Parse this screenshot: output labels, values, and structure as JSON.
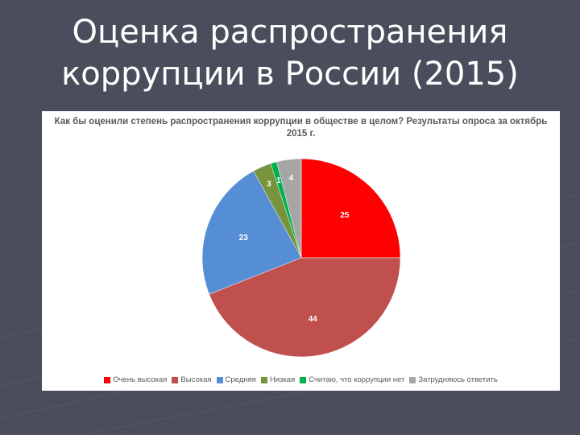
{
  "slide": {
    "title_line1": "Оценка распространения",
    "title_line2": "коррупции в России (2015)"
  },
  "chart_data": {
    "type": "pie",
    "title": "Как бы оценили степень распространения коррупции в обществе в целом? Результаты опроса за октябрь 2015 г.",
    "categories": [
      "Очень высокая",
      "Высокая",
      "Средняя",
      "Низкая",
      "Считаю, что коррупции нет",
      "Затрудняюсь ответить"
    ],
    "values": [
      25,
      44,
      23,
      3,
      1,
      4
    ],
    "colors": [
      "#ff0000",
      "#c0504d",
      "#558ed5",
      "#77933c",
      "#00b050",
      "#a6a6a6"
    ],
    "label_color": "#ffffff",
    "legend_position": "bottom"
  },
  "colors": {
    "background": "#4a4d5c",
    "chart_background": "#ffffff"
  }
}
